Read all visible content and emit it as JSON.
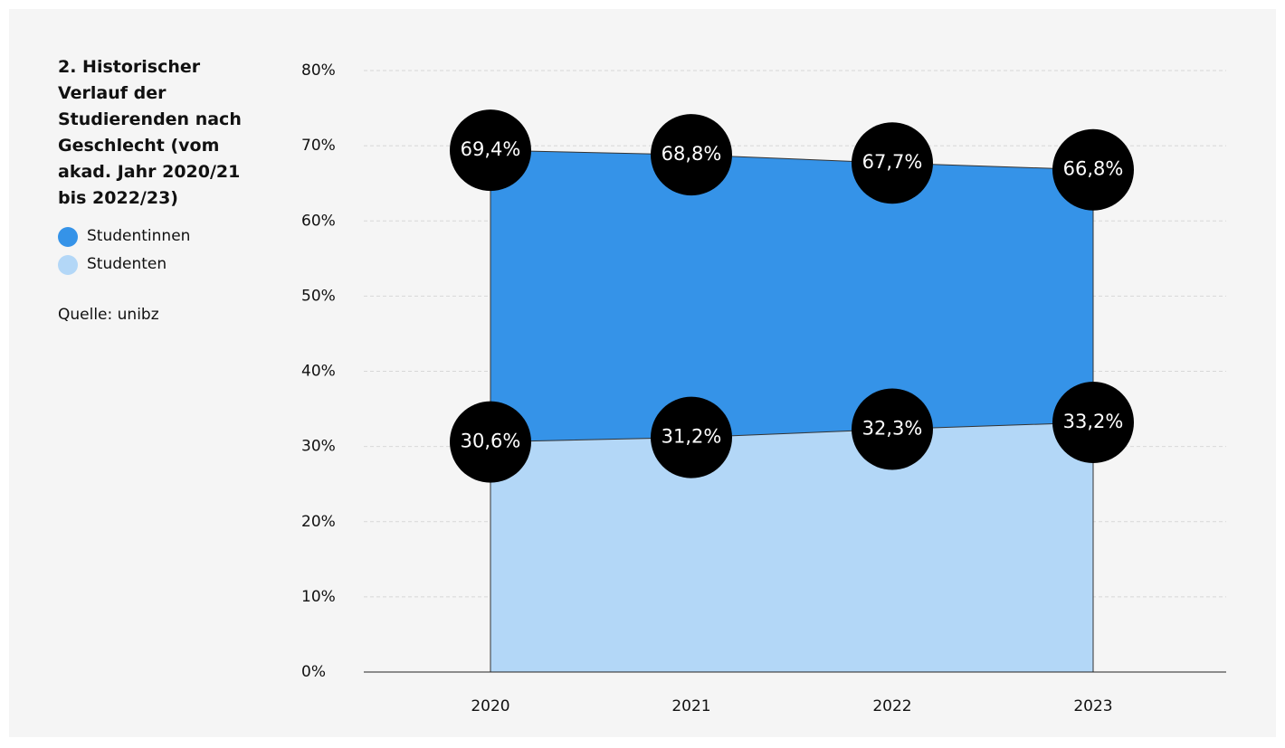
{
  "chart_data": {
    "type": "area",
    "title": "2. Historischer Verlauf der Studierenden nach Geschlecht (vom akad. Jahr 2020/21 bis 2022/23)",
    "source": "Quelle: unibz",
    "categories": [
      "2020",
      "2021",
      "2022",
      "2023"
    ],
    "series": [
      {
        "name": "Studentinnen",
        "color": "#3593e8",
        "values": [
          69.4,
          68.8,
          67.7,
          66.8
        ],
        "value_labels": [
          "69,4%",
          "68,8%",
          "67,7%",
          "66,8%"
        ]
      },
      {
        "name": "Studenten",
        "color": "#b3d7f7",
        "values": [
          30.6,
          31.2,
          32.3,
          33.2
        ],
        "value_labels": [
          "30,6%",
          "31,2%",
          "32,3%",
          "33,2%"
        ]
      }
    ],
    "ylim": [
      0,
      80
    ],
    "yticks": [
      {
        "value": 0,
        "label": "0%"
      },
      {
        "value": 10,
        "label": "10%"
      },
      {
        "value": 20,
        "label": "20%"
      },
      {
        "value": 30,
        "label": "30%"
      },
      {
        "value": 40,
        "label": "40%"
      },
      {
        "value": 50,
        "label": "50%"
      },
      {
        "value": 60,
        "label": "60%"
      },
      {
        "value": 70,
        "label": "70%"
      },
      {
        "value": 80,
        "label": "80%"
      }
    ],
    "grid": true
  }
}
